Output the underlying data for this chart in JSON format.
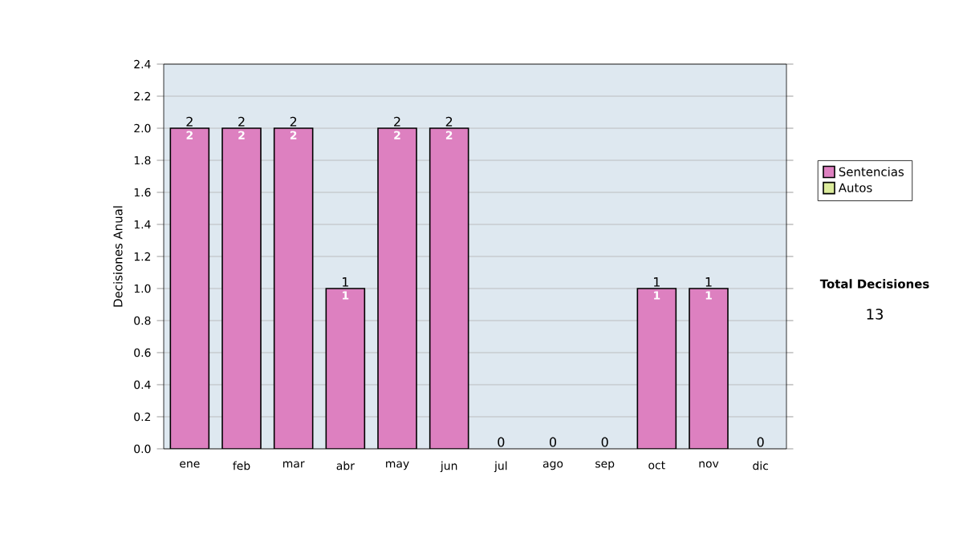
{
  "chart_data": {
    "type": "bar",
    "stacked": true,
    "ylabel": "Decisiones Anual",
    "categories": [
      "ene",
      "feb",
      "mar",
      "abr",
      "may",
      "jun",
      "jul",
      "ago",
      "sep",
      "oct",
      "nov",
      "dic"
    ],
    "series": [
      {
        "name": "Sentencias",
        "color": "#dd80c0",
        "values": [
          2,
          2,
          2,
          1,
          2,
          2,
          0,
          0,
          0,
          1,
          1,
          0
        ],
        "value_labels": [
          "2",
          "2",
          "2",
          "1",
          "2",
          "2",
          null,
          null,
          null,
          "1",
          "1",
          null
        ]
      },
      {
        "name": "Autos",
        "color": "#dcec9c",
        "values": [
          0,
          0,
          0,
          0,
          0,
          0,
          0,
          0,
          0,
          0,
          0,
          0
        ]
      }
    ],
    "totals": [
      "2",
      "2",
      "2",
      "1",
      "2",
      "2",
      "0",
      "0",
      "0",
      "1",
      "1",
      "0"
    ],
    "ylim": [
      0,
      2.4
    ],
    "yticks": [
      {
        "value": 0,
        "label": "0.0"
      },
      {
        "value": 0.2,
        "label": "0.2"
      },
      {
        "value": 0.4,
        "label": "0.4"
      },
      {
        "value": 0.6,
        "label": "0.6"
      },
      {
        "value": 0.8,
        "label": "0.8"
      },
      {
        "value": 1,
        "label": "1.0"
      },
      {
        "value": 1.2,
        "label": "1.2"
      },
      {
        "value": 1.4,
        "label": "1.4"
      },
      {
        "value": 1.6,
        "label": "1.6"
      },
      {
        "value": 1.8,
        "label": "1.8"
      },
      {
        "value": 2,
        "label": "2.0"
      },
      {
        "value": 2.2,
        "label": "2.2"
      },
      {
        "value": 2.4,
        "label": "2.4"
      }
    ],
    "grid": "y",
    "legend": "right",
    "annotations": [
      "Total Decisiones",
      "13"
    ]
  }
}
